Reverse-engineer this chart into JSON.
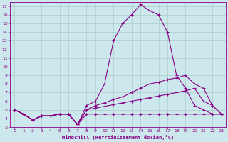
{
  "bg_color": "#cce8ec",
  "grid_color": "#aacccc",
  "line_color": "#880088",
  "xlabel": "Windchill (Refroidissement éolien,°C)",
  "xlim": [
    -0.5,
    23.5
  ],
  "ylim": [
    3,
    17.5
  ],
  "yticks": [
    3,
    4,
    5,
    6,
    7,
    8,
    9,
    10,
    11,
    12,
    13,
    14,
    15,
    16,
    17
  ],
  "xticks": [
    0,
    1,
    2,
    3,
    4,
    5,
    6,
    7,
    8,
    9,
    10,
    11,
    12,
    13,
    14,
    15,
    16,
    17,
    18,
    19,
    20,
    21,
    22,
    23
  ],
  "series": [
    {
      "x": [
        0,
        1,
        2,
        3,
        4,
        5,
        6,
        7,
        8,
        9,
        10,
        11,
        12,
        13,
        14,
        15,
        16,
        17,
        18,
        19,
        20,
        21,
        22,
        23
      ],
      "y": [
        5.0,
        4.5,
        3.8,
        4.3,
        4.3,
        4.5,
        4.5,
        3.3,
        5.5,
        6.0,
        8.0,
        13.0,
        15.0,
        16.0,
        17.2,
        16.5,
        16.0,
        14.0,
        9.0,
        7.5,
        5.5,
        5.0,
        4.5,
        4.5
      ]
    },
    {
      "x": [
        0,
        1,
        2,
        3,
        4,
        5,
        6,
        7,
        8,
        9,
        10,
        11,
        12,
        13,
        14,
        15,
        16,
        17,
        18,
        19,
        20,
        21,
        22,
        23
      ],
      "y": [
        5.0,
        4.5,
        3.8,
        4.3,
        4.3,
        4.5,
        4.5,
        3.3,
        5.0,
        5.5,
        5.8,
        6.2,
        6.5,
        7.0,
        7.5,
        8.0,
        8.2,
        8.5,
        8.7,
        9.0,
        8.0,
        7.5,
        5.5,
        4.5
      ]
    },
    {
      "x": [
        0,
        1,
        2,
        3,
        4,
        5,
        6,
        7,
        8,
        9,
        10,
        11,
        12,
        13,
        14,
        15,
        16,
        17,
        18,
        19,
        20,
        21,
        22,
        23
      ],
      "y": [
        5.0,
        4.5,
        3.8,
        4.3,
        4.3,
        4.5,
        4.5,
        3.3,
        5.0,
        5.2,
        5.4,
        5.6,
        5.8,
        6.0,
        6.2,
        6.4,
        6.6,
        6.8,
        7.0,
        7.2,
        7.5,
        6.0,
        5.5,
        4.5
      ]
    },
    {
      "x": [
        0,
        1,
        2,
        3,
        4,
        5,
        6,
        7,
        8,
        9,
        10,
        11,
        12,
        13,
        14,
        15,
        16,
        17,
        18,
        19,
        20,
        21,
        22,
        23
      ],
      "y": [
        5.0,
        4.5,
        3.8,
        4.3,
        4.3,
        4.5,
        4.5,
        3.3,
        4.5,
        4.5,
        4.5,
        4.5,
        4.5,
        4.5,
        4.5,
        4.5,
        4.5,
        4.5,
        4.5,
        4.5,
        4.5,
        4.5,
        4.5,
        4.5
      ]
    }
  ]
}
